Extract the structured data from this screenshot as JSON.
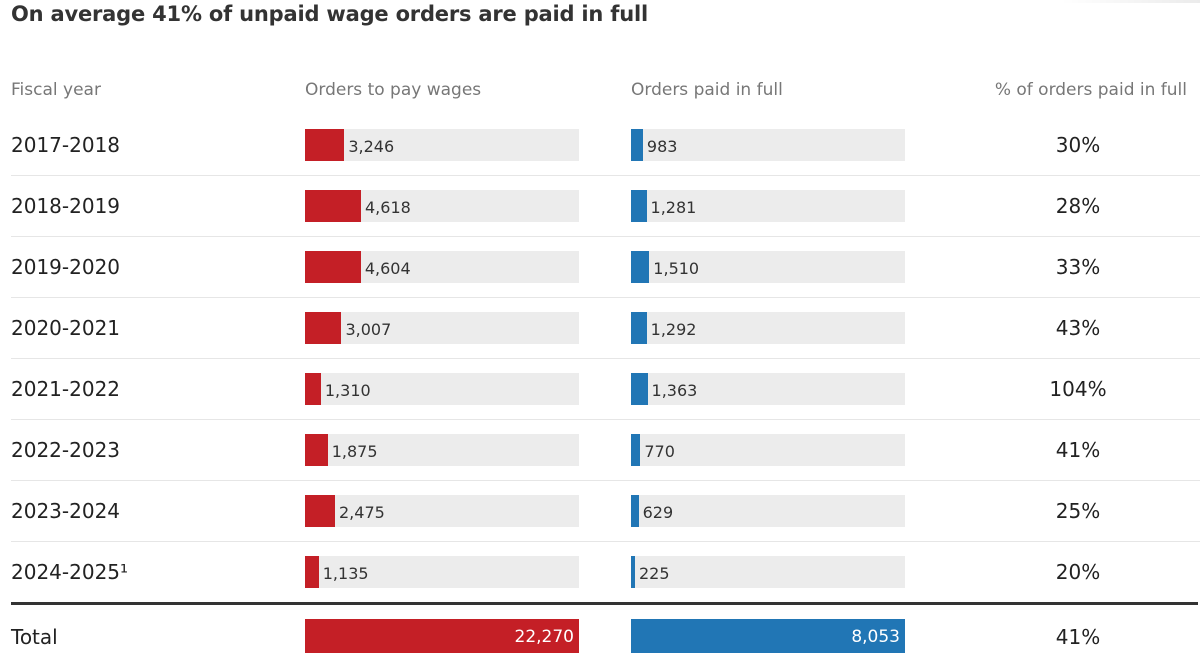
{
  "title": "On average 41% of unpaid wage orders are paid in full",
  "headers": {
    "fiscal_year": "Fiscal year",
    "orders": "Orders to pay wages",
    "paid": "Orders paid in full",
    "pct": "% of orders paid in full"
  },
  "colors": {
    "orders": "#c41f26",
    "paid": "#2176b5",
    "track": "#ececec"
  },
  "chart_data": {
    "type": "table",
    "title": "On average 41% of unpaid wage orders are paid in full",
    "columns": [
      "Fiscal year",
      "Orders to pay wages",
      "Orders paid in full",
      "% of orders paid in full"
    ],
    "bar_max": 4618,
    "rows": [
      {
        "year": "2017-2018",
        "orders": 3246,
        "orders_label": "3,246",
        "paid": 983,
        "paid_label": "983",
        "pct": "30%"
      },
      {
        "year": "2018-2019",
        "orders": 4618,
        "orders_label": "4,618",
        "paid": 1281,
        "paid_label": "1,281",
        "pct": "28%"
      },
      {
        "year": "2019-2020",
        "orders": 4604,
        "orders_label": "4,604",
        "paid": 1510,
        "paid_label": "1,510",
        "pct": "33%"
      },
      {
        "year": "2020-2021",
        "orders": 3007,
        "orders_label": "3,007",
        "paid": 1292,
        "paid_label": "1,292",
        "pct": "43%"
      },
      {
        "year": "2021-2022",
        "orders": 1310,
        "orders_label": "1,310",
        "paid": 1363,
        "paid_label": "1,363",
        "pct": "104%"
      },
      {
        "year": "2022-2023",
        "orders": 1875,
        "orders_label": "1,875",
        "paid": 770,
        "paid_label": "770",
        "pct": "41%"
      },
      {
        "year": "2023-2024",
        "orders": 2475,
        "orders_label": "2,475",
        "paid": 629,
        "paid_label": "629",
        "pct": "25%"
      },
      {
        "year": "2024-2025¹",
        "orders": 1135,
        "orders_label": "1,135",
        "paid": 225,
        "paid_label": "225",
        "pct": "20%"
      }
    ],
    "total": {
      "year": "Total",
      "orders": 22270,
      "orders_label": "22,270",
      "paid": 8053,
      "paid_label": "8,053",
      "pct": "41%"
    }
  }
}
